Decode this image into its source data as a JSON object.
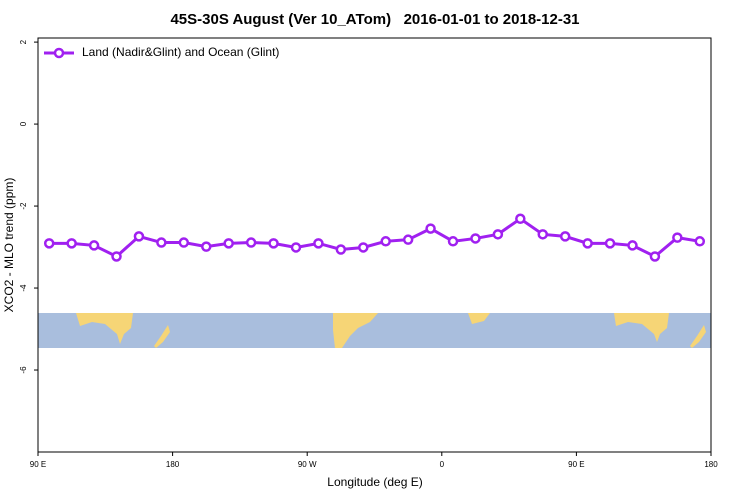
{
  "chart_data": {
    "type": "line",
    "title": "45S-30S August (Ver 10_ATom)   2016-01-01 to 2018-12-31",
    "x_label": "Longitude (deg E)",
    "y_label": "XCO2 - MLO trend (ppm)",
    "x": [
      97.5,
      112.5,
      127.5,
      142.5,
      157.5,
      172.5,
      187.5,
      202.5,
      217.5,
      232.5,
      247.5,
      262.5,
      277.5,
      292.5,
      307.5,
      322.5,
      337.5,
      352.5,
      367.5,
      382.5,
      397.5,
      412.5,
      427.5,
      442.5,
      457.5,
      472.5,
      487.5,
      502.5,
      517.5,
      532.5
    ],
    "series": [
      {
        "name": "Land (Nadir&Glint) and Ocean (Glint)",
        "color": "#a020f0",
        "values": [
          -2.91,
          -2.91,
          -2.96,
          -3.23,
          -2.74,
          -2.89,
          -2.89,
          -2.99,
          -2.91,
          -2.89,
          -2.91,
          -3.01,
          -2.91,
          -3.06,
          -3.01,
          -2.86,
          -2.82,
          -2.55,
          -2.86,
          -2.79,
          -2.69,
          -2.31,
          -2.69,
          -2.74,
          -2.91,
          -2.91,
          -2.96,
          -3.23,
          -2.77,
          -2.86
        ]
      }
    ],
    "xlim": [
      90,
      540
    ],
    "xticks": [
      {
        "value": 90,
        "label": "90 E"
      },
      180,
      {
        "value": 270,
        "label": "90 W"
      },
      {
        "value": 360,
        "label": "0"
      },
      {
        "value": 450,
        "label": "90 E"
      },
      {
        "value": 540,
        "label": "180"
      }
    ],
    "ylim": [
      -8,
      2.1
    ],
    "yticks": [
      2,
      0,
      -2,
      -4,
      -6
    ],
    "legend": "top-left"
  }
}
